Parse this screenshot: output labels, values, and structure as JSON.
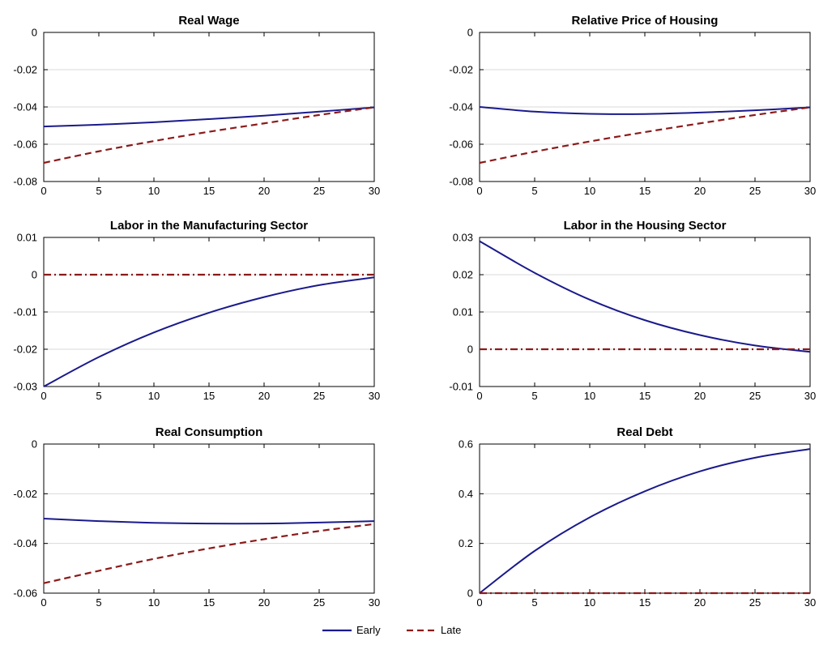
{
  "chart_data": [
    {
      "type": "line",
      "title": "Real Wage",
      "xlim": [
        0,
        30
      ],
      "ylim": [
        -0.08,
        0
      ],
      "xticks": [
        0,
        5,
        10,
        15,
        20,
        25,
        30
      ],
      "yticks": [
        0,
        -0.02,
        -0.04,
        -0.06,
        -0.08
      ],
      "ytick_labels": [
        "0",
        "-0.02",
        "-0.04",
        "-0.06",
        "-0.08"
      ],
      "grid": true,
      "series": [
        {
          "name": "Early",
          "x": [
            0,
            5,
            10,
            15,
            20,
            25,
            30
          ],
          "y": [
            -0.0505,
            -0.0495,
            -0.0482,
            -0.0465,
            -0.0447,
            -0.0425,
            -0.0402
          ]
        },
        {
          "name": "Late",
          "x": [
            0,
            5,
            10,
            15,
            20,
            25,
            30
          ],
          "y": [
            -0.07,
            -0.0638,
            -0.0583,
            -0.0533,
            -0.0488,
            -0.0443,
            -0.0402
          ]
        }
      ]
    },
    {
      "type": "line",
      "title": "Relative Price of Housing",
      "xlim": [
        0,
        30
      ],
      "ylim": [
        -0.08,
        0
      ],
      "xticks": [
        0,
        5,
        10,
        15,
        20,
        25,
        30
      ],
      "yticks": [
        0,
        -0.02,
        -0.04,
        -0.06,
        -0.08
      ],
      "ytick_labels": [
        "0",
        "-0.02",
        "-0.04",
        "-0.06",
        "-0.08"
      ],
      "grid": true,
      "series": [
        {
          "name": "Early",
          "x": [
            0,
            5,
            10,
            15,
            20,
            25,
            30
          ],
          "y": [
            -0.04,
            -0.0425,
            -0.0437,
            -0.0438,
            -0.043,
            -0.0418,
            -0.0402
          ]
        },
        {
          "name": "Late",
          "x": [
            0,
            5,
            10,
            15,
            20,
            25,
            30
          ],
          "y": [
            -0.07,
            -0.064,
            -0.0585,
            -0.0535,
            -0.0488,
            -0.0443,
            -0.0402
          ]
        }
      ]
    },
    {
      "type": "line",
      "title": "Labor in the Manufacturing Sector",
      "xlim": [
        0,
        30
      ],
      "ylim": [
        -0.03,
        0.01
      ],
      "xticks": [
        0,
        5,
        10,
        15,
        20,
        25,
        30
      ],
      "yticks": [
        0.01,
        0,
        -0.01,
        -0.02,
        -0.03
      ],
      "ytick_labels": [
        "0.01",
        "0",
        "-0.01",
        "-0.02",
        "-0.03"
      ],
      "grid": true,
      "series": [
        {
          "name": "Early",
          "x": [
            0,
            5,
            10,
            15,
            20,
            25,
            30
          ],
          "y": [
            -0.03,
            -0.0221,
            -0.0155,
            -0.0102,
            -0.006,
            -0.0028,
            -0.0007
          ]
        },
        {
          "name": "Late",
          "x": [
            0,
            5,
            10,
            15,
            20,
            25,
            30
          ],
          "y": [
            0,
            0,
            0,
            0,
            0,
            0,
            0
          ]
        }
      ]
    },
    {
      "type": "line",
      "title": "Labor in the Housing Sector",
      "xlim": [
        0,
        30
      ],
      "ylim": [
        -0.01,
        0.03
      ],
      "xticks": [
        0,
        5,
        10,
        15,
        20,
        25,
        30
      ],
      "yticks": [
        0.03,
        0.02,
        0.01,
        0,
        -0.01
      ],
      "ytick_labels": [
        "0.03",
        "0.02",
        "0.01",
        "0",
        "-0.01"
      ],
      "grid": true,
      "series": [
        {
          "name": "Early",
          "x": [
            0,
            5,
            10,
            15,
            20,
            25,
            30
          ],
          "y": [
            0.029,
            0.0205,
            0.0133,
            0.0078,
            0.0038,
            0.001,
            -0.0007
          ]
        },
        {
          "name": "Late",
          "x": [
            0,
            5,
            10,
            15,
            20,
            25,
            30
          ],
          "y": [
            0,
            0,
            0,
            0,
            0,
            0,
            0
          ]
        }
      ]
    },
    {
      "type": "line",
      "title": "Real Consumption",
      "xlim": [
        0,
        30
      ],
      "ylim": [
        -0.06,
        0
      ],
      "xticks": [
        0,
        5,
        10,
        15,
        20,
        25,
        30
      ],
      "yticks": [
        0,
        -0.02,
        -0.04,
        -0.06
      ],
      "ytick_labels": [
        "0",
        "-0.02",
        "-0.04",
        "-0.06"
      ],
      "grid": true,
      "series": [
        {
          "name": "Early",
          "x": [
            0,
            5,
            10,
            15,
            20,
            25,
            30
          ],
          "y": [
            -0.03,
            -0.031,
            -0.0317,
            -0.032,
            -0.032,
            -0.0316,
            -0.031
          ]
        },
        {
          "name": "Late",
          "x": [
            0,
            5,
            10,
            15,
            20,
            25,
            30
          ],
          "y": [
            -0.056,
            -0.051,
            -0.0462,
            -0.042,
            -0.0383,
            -0.035,
            -0.0322
          ]
        }
      ]
    },
    {
      "type": "line",
      "title": "Real Debt",
      "xlim": [
        0,
        30
      ],
      "ylim": [
        0,
        0.6
      ],
      "xticks": [
        0,
        5,
        10,
        15,
        20,
        25,
        30
      ],
      "yticks": [
        0.6,
        0.4,
        0.2,
        0
      ],
      "ytick_labels": [
        "0.6",
        "0.4",
        "0.2",
        "0"
      ],
      "grid": true,
      "series": [
        {
          "name": "Early",
          "x": [
            0,
            5,
            10,
            15,
            20,
            25,
            30
          ],
          "y": [
            0.0,
            0.17,
            0.305,
            0.41,
            0.49,
            0.545,
            0.58
          ]
        },
        {
          "name": "Late",
          "x": [
            0,
            5,
            10,
            15,
            20,
            25,
            30
          ],
          "y": [
            0,
            0,
            0,
            0,
            0,
            0,
            0
          ]
        }
      ]
    }
  ],
  "legend": {
    "placement": "bottom-center",
    "items": [
      {
        "label": "Early",
        "color": "#1a1a8c",
        "style": "solid"
      },
      {
        "label": "Late",
        "color": "#8b1a1a",
        "style": "dashed"
      }
    ]
  },
  "colors": {
    "early": "#1a1a8c",
    "late": "#8b1a1a",
    "grid": "#d9d9d9",
    "axis": "#000000"
  }
}
